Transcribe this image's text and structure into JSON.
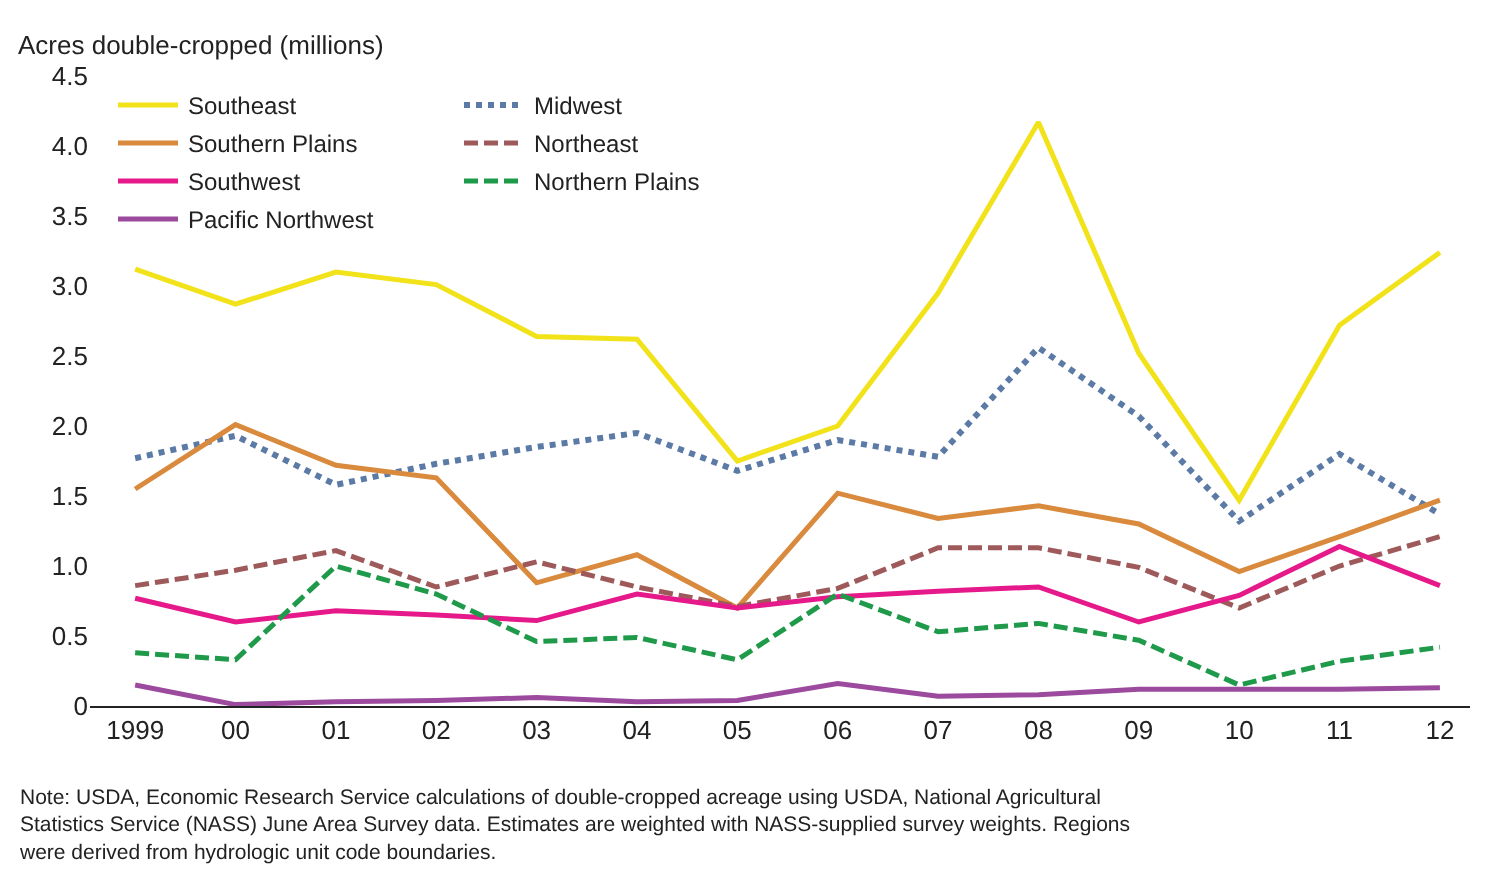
{
  "chart_data": {
    "type": "line",
    "ylabel": "Acres double-cropped (millions)",
    "x": [
      1999,
      2000,
      2001,
      2002,
      2003,
      2004,
      2005,
      2006,
      2007,
      2008,
      2009,
      2010,
      2011,
      2012
    ],
    "xlim": [
      1998.55,
      2012.3
    ],
    "xticks": [
      {
        "value": 1999,
        "label": "1999"
      },
      {
        "value": 2000,
        "label": "00"
      },
      {
        "value": 2001,
        "label": "01"
      },
      {
        "value": 2002,
        "label": "02"
      },
      {
        "value": 2003,
        "label": "03"
      },
      {
        "value": 2004,
        "label": "04"
      },
      {
        "value": 2005,
        "label": "05"
      },
      {
        "value": 2006,
        "label": "06"
      },
      {
        "value": 2007,
        "label": "07"
      },
      {
        "value": 2008,
        "label": "08"
      },
      {
        "value": 2009,
        "label": "09"
      },
      {
        "value": 2010,
        "label": "10"
      },
      {
        "value": 2011,
        "label": "11"
      },
      {
        "value": 2012,
        "label": "12"
      }
    ],
    "ylim": [
      0,
      4.5
    ],
    "yticks": [
      0,
      0.5,
      {
        "value": 1,
        "label": "1.0"
      },
      1.5,
      {
        "value": 2,
        "label": "2.0"
      },
      2.5,
      {
        "value": 3,
        "label": "3.0"
      },
      3.5,
      {
        "value": 4,
        "label": "4.0"
      },
      4.5
    ],
    "grid": false,
    "legend": "top left",
    "series": [
      {
        "name": "Southeast",
        "color": "#f2e21a",
        "line_style": "solid",
        "values": [
          3.12,
          2.87,
          3.1,
          3.01,
          2.64,
          2.62,
          1.75,
          2.0,
          2.95,
          4.17,
          2.52,
          1.47,
          2.72,
          3.24
        ]
      },
      {
        "name": "Midwest",
        "color": "#5b7aa6",
        "line_style": "dotted",
        "values": [
          1.77,
          1.93,
          1.58,
          1.73,
          1.85,
          1.95,
          1.68,
          1.9,
          1.78,
          2.56,
          2.07,
          1.32,
          1.8,
          1.37
        ]
      },
      {
        "name": "Southern Plains",
        "color": "#d98a3d",
        "line_style": "solid",
        "values": [
          1.55,
          2.01,
          1.72,
          1.63,
          0.88,
          1.08,
          0.7,
          1.52,
          1.34,
          1.43,
          1.3,
          0.96,
          1.21,
          1.47
        ]
      },
      {
        "name": "Northeast",
        "color": "#9e5a5a",
        "line_style": "dashed",
        "values": [
          0.86,
          0.97,
          1.11,
          0.85,
          1.03,
          0.85,
          0.71,
          0.84,
          1.13,
          1.13,
          0.99,
          0.7,
          1.0,
          1.21
        ]
      },
      {
        "name": "Southwest",
        "color": "#e5198a",
        "line_style": "solid",
        "values": [
          0.77,
          0.6,
          0.68,
          0.65,
          0.61,
          0.8,
          0.7,
          0.78,
          0.82,
          0.85,
          0.6,
          0.79,
          1.14,
          0.86
        ]
      },
      {
        "name": "Northern Plains",
        "color": "#1f9a4a",
        "line_style": "dashed",
        "values": [
          0.38,
          0.33,
          1.0,
          0.8,
          0.46,
          0.49,
          0.33,
          0.8,
          0.53,
          0.59,
          0.47,
          0.15,
          0.32,
          0.42
        ]
      },
      {
        "name": "Pacific Northwest",
        "color": "#9b4a9e",
        "line_style": "solid",
        "values": [
          0.15,
          0.01,
          0.03,
          0.04,
          0.06,
          0.03,
          0.04,
          0.16,
          0.07,
          0.08,
          0.12,
          0.12,
          0.12,
          0.13
        ]
      }
    ],
    "annotations": [
      "Note: USDA, Economic Research Service calculations of double-cropped acreage using USDA, National Agricultural Statistics Service (NASS) June Area Survey data. Estimates are weighted with NASS-supplied survey weights. Regions were derived from hydrologic unit code boundaries."
    ]
  }
}
